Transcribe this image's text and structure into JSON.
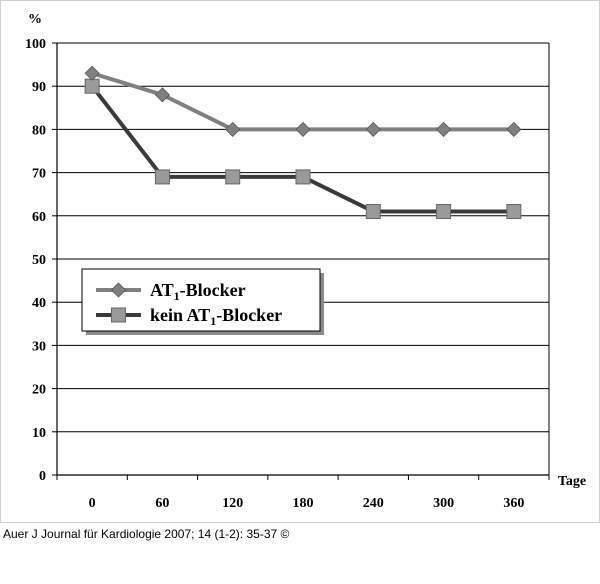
{
  "chart_data": {
    "type": "line",
    "ylabel": "%",
    "xlabel": "Tage",
    "x": [
      0,
      60,
      120,
      180,
      240,
      300,
      360
    ],
    "ylim": [
      0,
      100
    ],
    "yticks": [
      0,
      10,
      20,
      30,
      40,
      50,
      60,
      70,
      80,
      90,
      100
    ],
    "grid": "horizontal",
    "legend_position": "center-left",
    "series": [
      {
        "name": "AT1-Blocker",
        "name_main": "AT",
        "name_sub": "1",
        "name_rest": "-Blocker",
        "marker": "diamond",
        "color": "#808080",
        "values": [
          93,
          88,
          80,
          80,
          80,
          80,
          80
        ]
      },
      {
        "name": "kein AT1-Blocker",
        "name_main": "kein AT",
        "name_sub": "1",
        "name_rest": "-Blocker",
        "marker": "square",
        "color": "#3a3a3a",
        "values": [
          90,
          69,
          69,
          69,
          61,
          61,
          61
        ]
      }
    ]
  },
  "citation": "Auer J Journal für Kardiologie 2007; 14 (1-2): 35-37 ©"
}
